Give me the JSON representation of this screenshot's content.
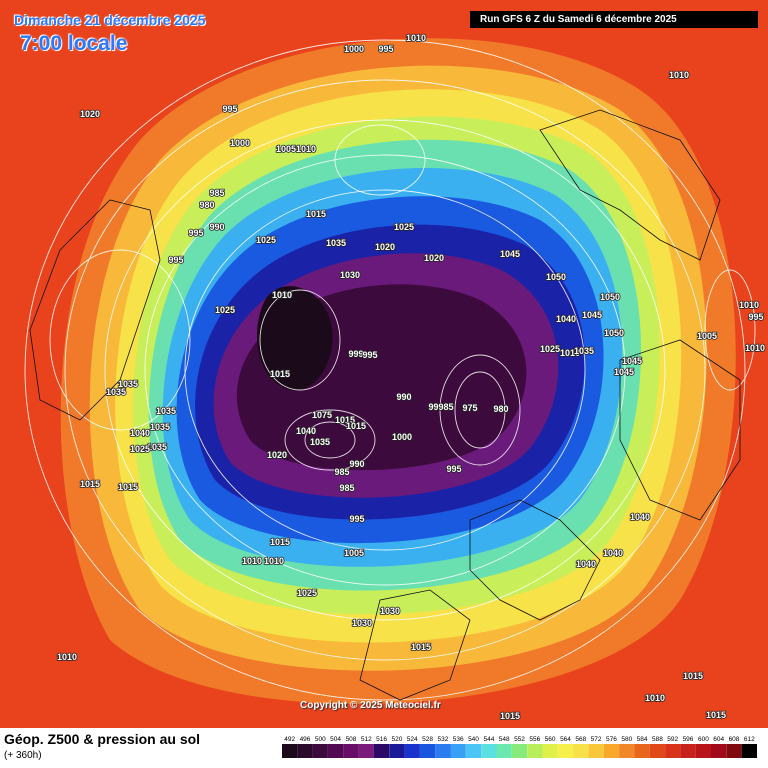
{
  "header": {
    "date": "Dimanche 21 décembre 2025",
    "time": "7:00 locale",
    "run": "Run GFS 6 Z du Samedi 6 décembre 2025"
  },
  "copyright": "Copyright © 2025 Meteociel.fr",
  "footer": {
    "title": "Géop. Z500 & pression au sol",
    "subtitle": "(+ 360h)"
  },
  "legend": {
    "ticks": [
      "492",
      "496",
      "500",
      "504",
      "508",
      "512",
      "516",
      "520",
      "524",
      "528",
      "532",
      "536",
      "540",
      "544",
      "548",
      "552",
      "556",
      "560",
      "564",
      "568",
      "572",
      "576",
      "580",
      "584",
      "588",
      "592",
      "596",
      "600",
      "604",
      "608",
      "612"
    ],
    "colors": [
      "#1a0a1a",
      "#2a0a2a",
      "#3d0a3d",
      "#520a52",
      "#670f67",
      "#7a1a7a",
      "#2a0a66",
      "#1a1a99",
      "#1a33cc",
      "#1a55e0",
      "#2a7af0",
      "#3aa0f5",
      "#4ac5f5",
      "#5ae0e0",
      "#6ae8b0",
      "#88ea7a",
      "#b8ee5a",
      "#e0f04a",
      "#f8f04a",
      "#f8e04a",
      "#f8c83a",
      "#f8a82a",
      "#f0882a",
      "#e8661a",
      "#e0481a",
      "#d8321a",
      "#c8201a",
      "#b8141a",
      "#a00a1a",
      "#800a10",
      "#000000"
    ]
  },
  "pressure_labels": [
    "1000",
    "995",
    "1010",
    "1020",
    "995",
    "1000",
    "1005",
    "1010",
    "1010",
    "985",
    "980",
    "990",
    "995",
    "1025",
    "1015",
    "1025",
    "1035",
    "1020",
    "1020",
    "995",
    "1030",
    "1025",
    "1045",
    "1050",
    "1010",
    "1050",
    "1040",
    "1045",
    "1050",
    "1025",
    "1010",
    "1035",
    "1005",
    "995",
    "1010",
    "1010",
    "1015",
    "999",
    "995",
    "1045",
    "1045",
    "1015",
    "990",
    "990",
    "985",
    "975",
    "980",
    "1035",
    "1035",
    "1035",
    "1035",
    "1040",
    "1035",
    "1025",
    "1075",
    "1015",
    "1040",
    "1035",
    "1000",
    "1020",
    "990",
    "985",
    "995",
    "1040",
    "1015",
    "985",
    "995",
    "1015",
    "1015",
    "1040",
    "1010",
    "1010",
    "1005",
    "1040",
    "1025",
    "1030",
    "1030",
    "1010",
    "1015",
    "1010",
    "1015",
    "1015",
    "1015"
  ],
  "colors": {
    "warm": "#e8431c",
    "deep": "#1a0a1a",
    "contour": "#ffffff"
  }
}
